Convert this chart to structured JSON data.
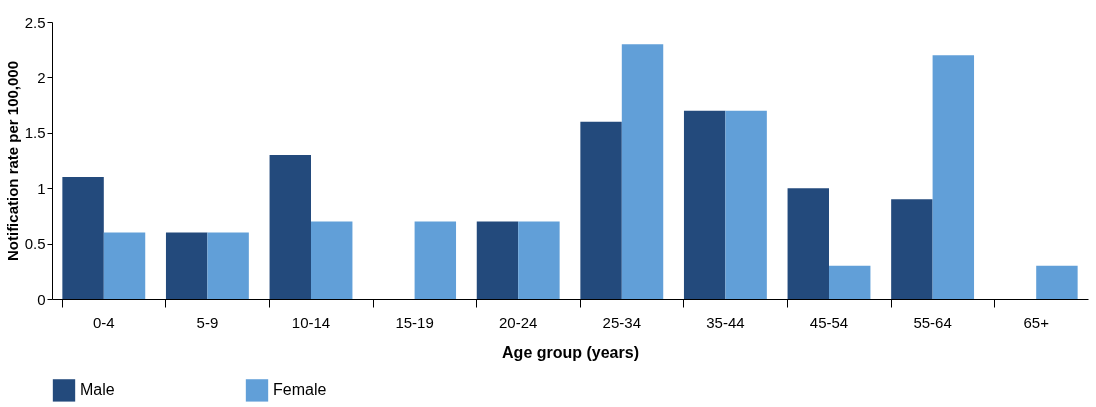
{
  "chart_data": {
    "type": "bar",
    "xlabel": "Age group (years)",
    "ylabel": "Notification rate per 100,000",
    "categories": [
      "0-4",
      "5-9",
      "10-14",
      "15-19",
      "20-24",
      "25-34",
      "35-44",
      "45-54",
      "55-64",
      "65+"
    ],
    "series": [
      {
        "name": "Male",
        "color": "#234a7c",
        "values": [
          1.1,
          0.6,
          1.3,
          0,
          0.7,
          1.6,
          1.7,
          1.0,
          0.9,
          0
        ]
      },
      {
        "name": "Female",
        "color": "#619fd8",
        "values": [
          0.6,
          0.6,
          0.7,
          0.7,
          0.7,
          2.3,
          1.7,
          0.3,
          2.2,
          0.3
        ]
      }
    ],
    "ylim": [
      0,
      2.5
    ],
    "yticks": [
      0,
      0.5,
      1,
      1.5,
      2,
      2.5
    ],
    "grid": false,
    "legend": "bottom"
  }
}
